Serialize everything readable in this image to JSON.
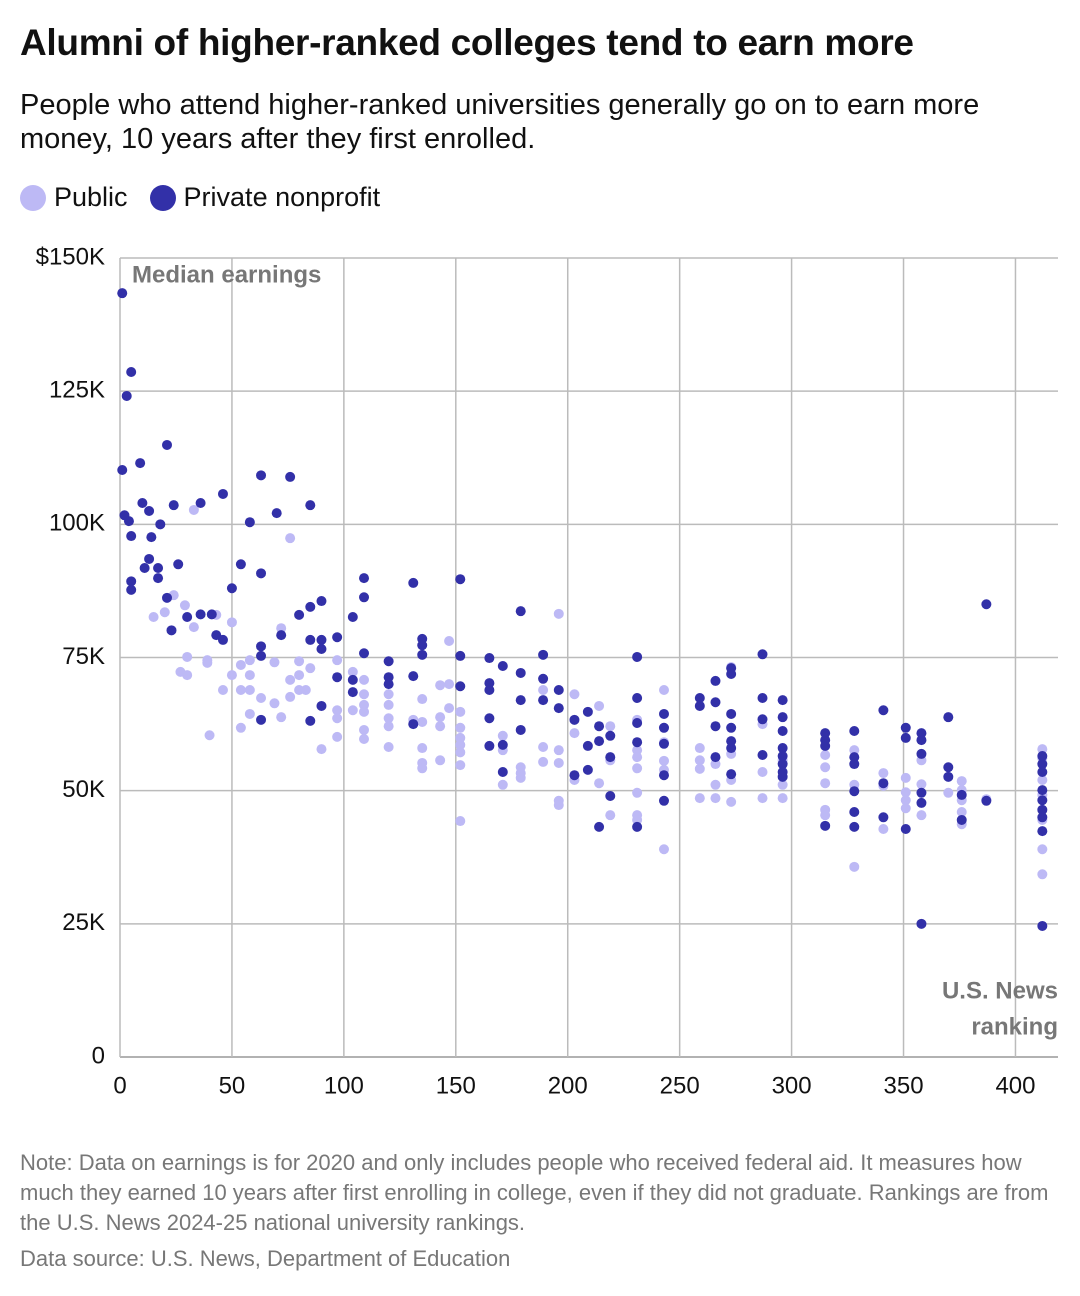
{
  "chart_data": {
    "type": "scatter",
    "title": "Alumni of higher-ranked colleges tend to earn more",
    "subtitle": "People who attend higher-ranked universities generally go on to earn more money, 10 years after they first enrolled.",
    "y_annotation": "Median earnings",
    "x_annotation": [
      "U.S. News",
      "ranking"
    ],
    "note": "Note: Data on earnings is for 2020 and only includes people who received federal aid. It measures how much they earned 10 years after first enrolling in college, even if they did not graduate. Rankings are from the U.S. News 2024-25 national university rankings.",
    "source": "Data source: U.S. News, Department of Education",
    "xlim": [
      0,
      419
    ],
    "xticks": [
      0,
      50,
      100,
      150,
      200,
      250,
      300,
      350,
      400
    ],
    "ylim": [
      0,
      150000
    ],
    "yticks": [
      0,
      {
        "value": 25000,
        "label": "25K"
      },
      {
        "value": 50000,
        "label": "50K"
      },
      {
        "value": 75000,
        "label": "75K"
      },
      {
        "value": 100000,
        "label": "100K"
      },
      {
        "value": 125000,
        "label": "125K"
      },
      {
        "value": 150000,
        "label": "$150K"
      }
    ],
    "grid": true,
    "series": [
      {
        "name": "Public",
        "color": "#bdb9f5",
        "x": [
          33,
          76,
          15,
          20,
          24,
          29,
          33,
          30,
          39,
          43,
          50,
          30,
          27,
          39,
          46,
          50,
          54,
          58,
          54,
          58,
          58,
          40,
          54,
          58,
          63,
          69,
          72,
          76,
          80,
          80,
          76,
          80,
          85,
          83,
          72,
          69,
          90,
          97,
          97,
          97,
          97,
          104,
          104,
          109,
          109,
          109,
          109,
          109,
          109,
          120,
          120,
          120,
          120,
          120,
          131,
          135,
          135,
          135,
          135,
          135,
          143,
          143,
          143,
          143,
          147,
          147,
          147,
          152,
          152,
          152,
          152,
          152,
          152,
          152,
          171,
          171,
          171,
          179,
          179,
          179,
          189,
          189,
          189,
          196,
          196,
          196,
          196,
          196,
          203,
          203,
          203,
          214,
          214,
          219,
          219,
          219,
          231,
          231,
          231,
          231,
          231,
          231,
          231,
          243,
          243,
          243,
          243,
          243,
          243,
          259,
          259,
          259,
          259,
          266,
          266,
          266,
          273,
          273,
          273,
          273,
          287,
          287,
          287,
          296,
          296,
          296,
          315,
          315,
          315,
          315,
          315,
          328,
          328,
          328,
          341,
          341,
          341,
          351,
          351,
          351,
          351,
          358,
          358,
          358,
          370,
          376,
          376,
          376,
          376,
          376,
          387,
          412,
          412,
          412,
          412,
          412,
          412,
          412
        ],
        "values": [
          102700,
          97400,
          82600,
          83500,
          86700,
          84800,
          80700,
          75100,
          74500,
          83000,
          81600,
          71700,
          72300,
          74000,
          68900,
          71700,
          73600,
          74500,
          68900,
          68900,
          71700,
          60400,
          61800,
          64400,
          67400,
          74100,
          80500,
          70800,
          74300,
          71700,
          67600,
          68900,
          73000,
          68900,
          63800,
          66400,
          57800,
          74500,
          65100,
          63600,
          60100,
          72300,
          65100,
          70800,
          68100,
          66100,
          64800,
          61400,
          59700,
          68100,
          66100,
          63600,
          62100,
          58200,
          63300,
          67200,
          62900,
          58000,
          55200,
          54200,
          69800,
          63800,
          62100,
          55700,
          78100,
          70000,
          65500,
          64800,
          61800,
          59900,
          58600,
          57200,
          54800,
          44300,
          60300,
          57600,
          51100,
          54400,
          53300,
          52400,
          68900,
          58200,
          55400,
          83200,
          57600,
          55200,
          48100,
          47300,
          68100,
          60800,
          52000,
          65900,
          51400,
          62100,
          55700,
          45400,
          63300,
          57600,
          56300,
          54200,
          49600,
          45400,
          44500,
          68900,
          61800,
          59100,
          55600,
          53900,
          39000,
          58000,
          55700,
          54100,
          48600,
          55000,
          51100,
          48600,
          73200,
          56900,
          52000,
          47900,
          62500,
          53500,
          48600,
          55700,
          51100,
          48600,
          56700,
          54400,
          51400,
          46400,
          45400,
          57600,
          51100,
          35700,
          53300,
          50900,
          42800,
          52400,
          49700,
          48200,
          46700,
          55700,
          51200,
          45400,
          49600,
          51800,
          50100,
          48200,
          46000,
          43700,
          48400,
          57800,
          56100,
          52000,
          49200,
          44500,
          39000,
          34300
        ]
      },
      {
        "name": "Private nonprofit",
        "color": "#3230a8",
        "x": [
          1,
          5,
          3,
          1,
          9,
          21,
          2,
          4,
          5,
          10,
          13,
          14,
          18,
          24,
          36,
          46,
          5,
          5,
          13,
          11,
          17,
          17,
          26,
          21,
          23,
          30,
          36,
          41,
          43,
          46,
          50,
          54,
          58,
          63,
          63,
          70,
          76,
          85,
          63,
          63,
          63,
          72,
          80,
          85,
          90,
          85,
          90,
          90,
          90,
          85,
          97,
          97,
          104,
          104,
          104,
          109,
          109,
          109,
          120,
          120,
          120,
          131,
          131,
          131,
          135,
          135,
          135,
          152,
          152,
          152,
          165,
          165,
          165,
          165,
          165,
          171,
          171,
          171,
          179,
          179,
          179,
          179,
          189,
          189,
          189,
          196,
          196,
          203,
          203,
          209,
          209,
          209,
          214,
          214,
          214,
          219,
          219,
          219,
          231,
          231,
          231,
          231,
          231,
          243,
          243,
          243,
          243,
          243,
          259,
          259,
          266,
          266,
          266,
          266,
          273,
          273,
          273,
          273,
          273,
          273,
          273,
          287,
          287,
          287,
          287,
          296,
          296,
          296,
          296,
          296,
          296,
          296,
          296,
          315,
          315,
          315,
          315,
          328,
          328,
          328,
          328,
          328,
          328,
          341,
          341,
          341,
          351,
          351,
          351,
          358,
          358,
          358,
          358,
          358,
          358,
          370,
          370,
          370,
          376,
          376,
          387,
          387,
          412,
          412,
          412,
          412,
          412,
          412,
          412,
          412,
          412
        ],
        "values": [
          143400,
          128600,
          124100,
          110200,
          111500,
          114900,
          101700,
          100600,
          97800,
          104000,
          102500,
          97600,
          100000,
          103600,
          104000,
          105700,
          89300,
          87700,
          93500,
          91800,
          91800,
          89900,
          92500,
          86200,
          80100,
          82600,
          83100,
          83100,
          79200,
          78300,
          88000,
          92500,
          100400,
          109200,
          90800,
          102100,
          108900,
          103600,
          77100,
          75300,
          63300,
          79200,
          83000,
          84500,
          85600,
          78300,
          78300,
          76600,
          65900,
          63100,
          78800,
          71300,
          82600,
          70800,
          68500,
          89900,
          86300,
          75800,
          74300,
          71300,
          70000,
          89000,
          71500,
          62500,
          78500,
          77300,
          75500,
          89700,
          75300,
          69600,
          74900,
          70200,
          68900,
          63600,
          58400,
          73400,
          58600,
          53500,
          83700,
          72100,
          67000,
          61400,
          75500,
          71000,
          67000,
          68900,
          65500,
          63300,
          52900,
          64800,
          58400,
          53900,
          62100,
          59300,
          43200,
          60300,
          56300,
          49000,
          75100,
          67400,
          62700,
          59100,
          43200,
          64400,
          61800,
          58800,
          52900,
          48100,
          67400,
          65900,
          70600,
          66600,
          62100,
          56300,
          73000,
          71900,
          64400,
          61800,
          59300,
          58000,
          53100,
          75600,
          67400,
          63400,
          56700,
          67000,
          63800,
          61200,
          58000,
          56500,
          55000,
          53500,
          52600,
          60800,
          59500,
          58400,
          43400,
          61200,
          56300,
          55000,
          49900,
          46000,
          43200,
          65100,
          51400,
          45000,
          61800,
          59900,
          42800,
          60800,
          59500,
          56900,
          49600,
          47700,
          25000,
          63800,
          54400,
          52600,
          49200,
          44500,
          85000,
          48100,
          56500,
          55000,
          53500,
          50100,
          48200,
          46400,
          45000,
          42400,
          24600
        ]
      }
    ]
  }
}
